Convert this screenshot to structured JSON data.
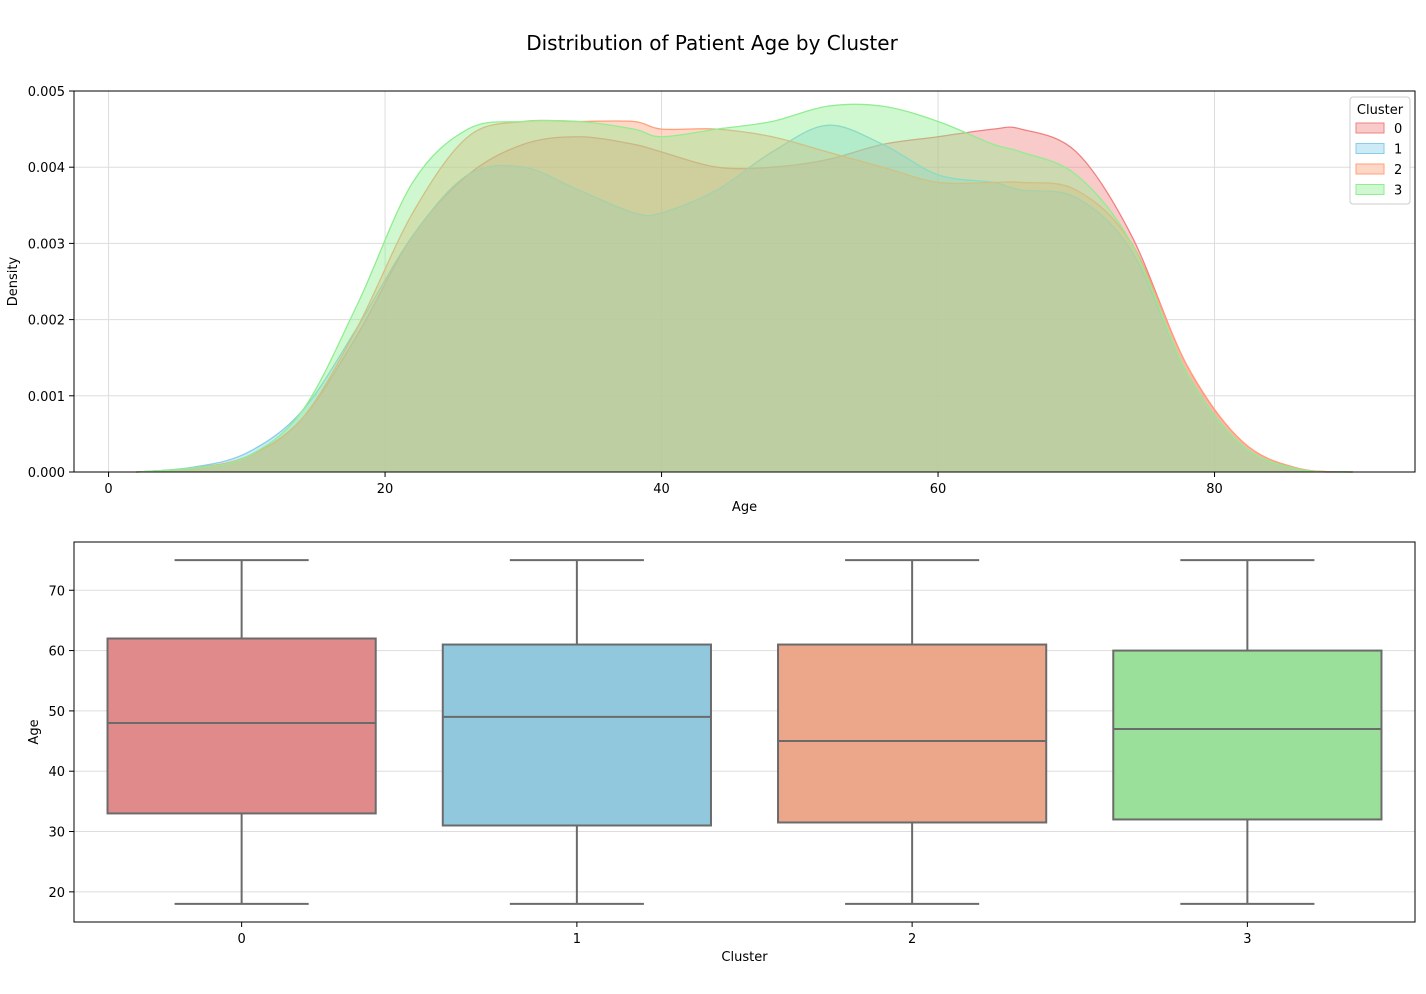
{
  "figure": {
    "title": "Distribution of Patient Age by Cluster"
  },
  "chart_data": [
    {
      "type": "area",
      "subtype": "kde",
      "xlabel": "Age",
      "ylabel": "Density",
      "xlim": [
        -2.5,
        94.5
      ],
      "ylim": [
        0,
        0.005
      ],
      "xticks": [
        0,
        20,
        40,
        60,
        80
      ],
      "yticks": [
        0.0,
        0.001,
        0.002,
        0.003,
        0.004,
        0.005
      ],
      "xtick_labels": [
        "0",
        "20",
        "40",
        "60",
        "80"
      ],
      "ytick_labels": [
        "0.000",
        "0.001",
        "0.002",
        "0.003",
        "0.004",
        "0.005"
      ],
      "grid": true,
      "legend": {
        "title": "Cluster",
        "position": "top-right"
      },
      "x": [
        2,
        6,
        10,
        14,
        18,
        22,
        26,
        30,
        34,
        38,
        40,
        44,
        48,
        52,
        56,
        60,
        64,
        66,
        70,
        74,
        78,
        82,
        86,
        90
      ],
      "series": [
        {
          "name": "0",
          "color": "#f08080",
          "values": [
            0.0,
            5e-05,
            0.0002,
            0.0007,
            0.0018,
            0.0031,
            0.0039,
            0.0043,
            0.0044,
            0.0043,
            0.0042,
            0.004,
            0.004,
            0.0041,
            0.0043,
            0.0044,
            0.0045,
            0.0045,
            0.0042,
            0.0031,
            0.0014,
            0.0004,
            5e-05,
            0.0
          ]
        },
        {
          "name": "1",
          "color": "#87ceeb",
          "values": [
            0.0,
            6e-05,
            0.00025,
            0.0008,
            0.0019,
            0.0031,
            0.0039,
            0.004,
            0.0037,
            0.0034,
            0.0034,
            0.0037,
            0.0042,
            0.00455,
            0.0043,
            0.0039,
            0.0038,
            0.0037,
            0.0036,
            0.0029,
            0.0013,
            0.00035,
            4e-05,
            0.0
          ]
        },
        {
          "name": "2",
          "color": "#ffa07a",
          "values": [
            0.0,
            5e-05,
            0.0002,
            0.0007,
            0.0019,
            0.0034,
            0.0044,
            0.0046,
            0.0046,
            0.0046,
            0.0045,
            0.0045,
            0.0044,
            0.0042,
            0.004,
            0.0038,
            0.0038,
            0.0038,
            0.0037,
            0.003,
            0.0014,
            0.0004,
            5e-05,
            0.0
          ]
        },
        {
          "name": "3",
          "color": "#90ee90",
          "values": [
            0.0,
            5e-05,
            0.0002,
            0.0008,
            0.0022,
            0.0038,
            0.0045,
            0.0046,
            0.0046,
            0.0045,
            0.0044,
            0.0045,
            0.0046,
            0.0048,
            0.0048,
            0.0046,
            0.0043,
            0.0042,
            0.0039,
            0.003,
            0.0013,
            0.00035,
            4e-05,
            0.0
          ]
        }
      ]
    },
    {
      "type": "box",
      "xlabel": "Cluster",
      "ylabel": "Age",
      "ylim": [
        15,
        78
      ],
      "yticks": [
        20,
        30,
        40,
        50,
        60,
        70
      ],
      "ytick_labels": [
        "20",
        "30",
        "40",
        "50",
        "60",
        "70"
      ],
      "grid": true,
      "categories": [
        "0",
        "1",
        "2",
        "3"
      ],
      "boxes": [
        {
          "label": "0",
          "color": "#e08a8c",
          "min": 18,
          "q1": 33,
          "median": 48,
          "q3": 62,
          "max": 75
        },
        {
          "label": "1",
          "color": "#91c8de",
          "min": 18,
          "q1": 31,
          "median": 49,
          "q3": 61,
          "max": 75
        },
        {
          "label": "2",
          "color": "#eca68a",
          "min": 18,
          "q1": 31.5,
          "median": 45,
          "q3": 61,
          "max": 75
        },
        {
          "label": "3",
          "color": "#9ae09a",
          "min": 18,
          "q1": 32,
          "median": 47,
          "q3": 60,
          "max": 75
        }
      ]
    }
  ]
}
